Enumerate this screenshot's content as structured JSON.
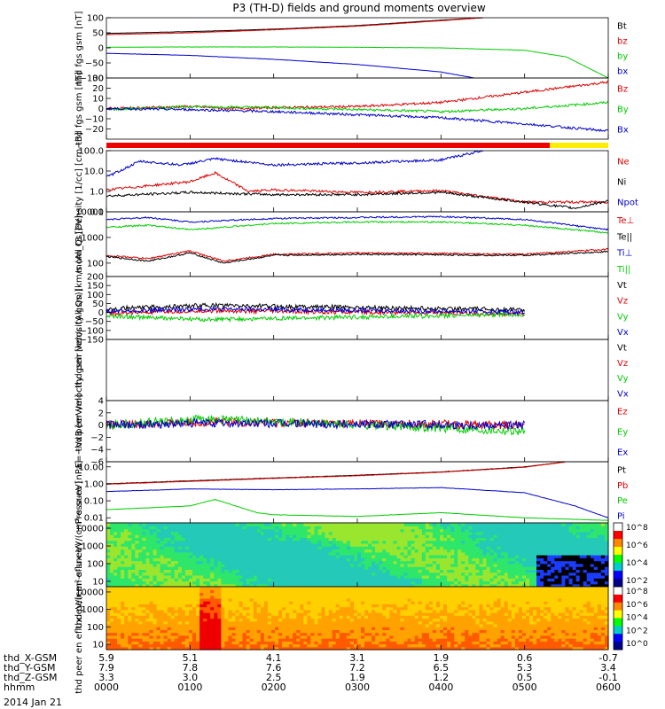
{
  "title": "P3 (TH-D) fields and ground moments overview",
  "date_label": "2014 Jan 21",
  "colorbar_labels": [
    "10^8",
    "10^6",
    "10^4",
    "10^2"
  ],
  "colorbar2_labels": [
    "10^8",
    "10^6",
    "10^4",
    "10^2",
    "10^0"
  ],
  "chart_data": {
    "type": "line",
    "title": "P3 (TH-D) fields and ground moments overview",
    "x_time_range": [
      "0000",
      "0600"
    ],
    "footer": {
      "rows": [
        {
          "label": "thd_X-GSM",
          "values": [
            "5.9",
            "5.1",
            "4.1",
            "3.1",
            "1.9",
            "0.6",
            "-0.7"
          ]
        },
        {
          "label": "thd_Y-GSM",
          "values": [
            "7.9",
            "7.8",
            "7.6",
            "7.2",
            "6.5",
            "5.3",
            "3.4"
          ]
        },
        {
          "label": "thd_Z-GSM",
          "values": [
            "3.3",
            "3.0",
            "2.5",
            "1.9",
            "1.2",
            "0.5",
            "-0.1"
          ]
        },
        {
          "label": "hhmm",
          "values": [
            "0000",
            "0100",
            "0200",
            "0300",
            "0400",
            "0500",
            "0600"
          ]
        }
      ]
    },
    "panels": [
      {
        "id": "fgs_gsm",
        "ylabel": "thd fgs gsm [nT]",
        "ylim": [
          -100,
          100
        ],
        "scale": "linear",
        "ticks": [
          {
            "v": 100,
            "l": "100"
          },
          {
            "v": 50,
            "l": "50"
          },
          {
            "v": 0,
            "l": "0"
          },
          {
            "v": -50,
            "l": "−50"
          },
          {
            "v": -100,
            "l": "−100"
          }
        ],
        "series": [
          {
            "name": "Bt",
            "color": "#000000",
            "x": [
              0,
              1,
              2,
              3,
              4,
              4.5
            ],
            "y": [
              48,
              54,
              62,
              74,
              92,
              100
            ]
          },
          {
            "name": "bz",
            "color": "#dd0000",
            "x": [
              0,
              1,
              2,
              3,
              4,
              4.5
            ],
            "y": [
              44,
              50,
              60,
              72,
              90,
              100
            ]
          },
          {
            "name": "by",
            "color": "#00cc00",
            "x": [
              0,
              1,
              2,
              3,
              4,
              5,
              5.5,
              6
            ],
            "y": [
              2,
              3,
              3,
              2,
              0,
              -8,
              -30,
              -100
            ]
          },
          {
            "name": "bx",
            "color": "#0000cc",
            "x": [
              0,
              1,
              2,
              3,
              4,
              4.4
            ],
            "y": [
              -18,
              -25,
              -38,
              -55,
              -80,
              -100
            ]
          }
        ]
      },
      {
        "id": "fgs_gsm_detrended",
        "ylabel": "thd fgs gsm [nT]",
        "ylim": [
          -30,
          30
        ],
        "scale": "linear",
        "ticks": [
          {
            "v": 30,
            "l": "30"
          },
          {
            "v": 20,
            "l": "20"
          },
          {
            "v": 10,
            "l": "10"
          },
          {
            "v": 0,
            "l": "0"
          },
          {
            "v": -10,
            "l": "−10"
          },
          {
            "v": -20,
            "l": "−20"
          }
        ],
        "series": [
          {
            "name": "Bz",
            "color": "#dd0000",
            "x": [
              0,
              1,
              1.5,
              2,
              3,
              4,
              5,
              6
            ],
            "y": [
              0,
              2,
              0,
              1,
              2,
              6,
              16,
              26
            ]
          },
          {
            "name": "By",
            "color": "#00cc00",
            "x": [
              0,
              1,
              2,
              3,
              4,
              5,
              6
            ],
            "y": [
              -1,
              2,
              1,
              -1,
              -3,
              0,
              6
            ]
          },
          {
            "name": "Bx",
            "color": "#0000cc",
            "x": [
              0,
              1,
              2,
              3,
              4,
              5,
              6
            ],
            "y": [
              0,
              -1,
              -3,
              -6,
              -9,
              -15,
              -22
            ]
          }
        ]
      },
      {
        "id": "density",
        "ylabel": "Density [1/cc] [cm−3]",
        "ylim": [
          0.1,
          100
        ],
        "scale": "log",
        "ticks": [
          {
            "v": 100,
            "l": "100.0"
          },
          {
            "v": 10,
            "l": "10.0"
          },
          {
            "v": 1,
            "l": "1.0"
          },
          {
            "v": 0.1,
            "l": "0.1"
          }
        ],
        "series": [
          {
            "name": "Ne",
            "color": "#dd0000",
            "x": [
              0,
              1,
              1.3,
              1.7,
              2,
              3,
              4,
              5,
              6
            ],
            "y": [
              1.2,
              3,
              8,
              1.0,
              1.2,
              0.9,
              1.1,
              0.3,
              0.3
            ]
          },
          {
            "name": "Ni",
            "color": "#000000",
            "x": [
              0,
              1,
              2,
              3,
              4,
              5,
              5.6,
              6
            ],
            "y": [
              0.6,
              0.9,
              0.7,
              0.7,
              0.9,
              0.3,
              0.15,
              0.35
            ]
          },
          {
            "name": "Npot",
            "color": "#0000cc",
            "x": [
              0,
              0.4,
              0.9,
              1.3,
              1.6,
              2,
              3,
              4,
              4.5
            ],
            "y": [
              5,
              30,
              20,
              40,
              30,
              20,
              25,
              35,
              100
            ]
          }
        ]
      },
      {
        "id": "temperature",
        "ylabel": "mom_t3 [eV]",
        "ylim": [
          30,
          10000
        ],
        "scale": "log",
        "ticks": [
          {
            "v": 10000,
            "l": "10000"
          },
          {
            "v": 1000,
            "l": "1000"
          },
          {
            "v": 100,
            "l": "100"
          }
        ],
        "series": [
          {
            "name": "Te⊥",
            "color": "#dd0000",
            "x": [
              0,
              0.5,
              1,
              1.4,
              2,
              3,
              4,
              5,
              6
            ],
            "y": [
              200,
              150,
              300,
              120,
              220,
              250,
              240,
              220,
              350
            ]
          },
          {
            "name": "Te||",
            "color": "#000000",
            "x": [
              0,
              0.5,
              1,
              1.4,
              2,
              3,
              4,
              5,
              6
            ],
            "y": [
              180,
              120,
              250,
              100,
              200,
              220,
              210,
              200,
              280
            ]
          },
          {
            "name": "Ti⊥",
            "color": "#0000cc",
            "x": [
              0,
              0.5,
              1,
              2,
              3,
              4,
              5,
              6
            ],
            "y": [
              5000,
              6000,
              4000,
              5500,
              6000,
              6500,
              5000,
              2000
            ]
          },
          {
            "name": "Ti||",
            "color": "#00cc00",
            "x": [
              0,
              0.5,
              1,
              2,
              3,
              4,
              5,
              6
            ],
            "y": [
              2500,
              3000,
              2000,
              3500,
              4000,
              4000,
              3000,
              1500
            ]
          }
        ]
      },
      {
        "id": "peir_velocity",
        "ylabel": "thd peir velocity gsm [km/s (All Qs)]",
        "ylim": [
          -150,
          200
        ],
        "scale": "linear",
        "ticks": [
          {
            "v": 200,
            "l": "200"
          },
          {
            "v": 150,
            "l": "150"
          },
          {
            "v": 100,
            "l": "100"
          },
          {
            "v": 50,
            "l": "50"
          },
          {
            "v": 0,
            "l": "0"
          },
          {
            "v": -50,
            "l": "−50"
          },
          {
            "v": -100,
            "l": "−100"
          },
          {
            "v": -150,
            "l": "−150"
          }
        ],
        "series": [
          {
            "name": "Vt",
            "color": "#000000",
            "x": [
              0,
              1.2,
              5
            ],
            "y": [
              20,
              40,
              15
            ]
          },
          {
            "name": "Vz",
            "color": "#dd0000",
            "x": [
              0,
              1.2,
              5
            ],
            "y": [
              -5,
              10,
              -8
            ]
          },
          {
            "name": "Vy",
            "color": "#00cc00",
            "x": [
              0,
              1.2,
              5
            ],
            "y": [
              -20,
              -40,
              -10
            ]
          },
          {
            "name": "Vx",
            "color": "#0000cc",
            "x": [
              0,
              1.2,
              5
            ],
            "y": [
              5,
              20,
              3
            ]
          }
        ]
      },
      {
        "id": "peer_velocity",
        "ylabel": "thd peer velocity gsm [km/s (All Qs)]",
        "ylim": [
          -150,
          200
        ],
        "scale": "linear",
        "ticks": [],
        "series": [
          {
            "name": "Vt",
            "color": "#000000",
            "x": [],
            "y": []
          },
          {
            "name": "Vz",
            "color": "#dd0000",
            "x": [],
            "y": []
          },
          {
            "name": "Vy",
            "color": "#00cc00",
            "x": [],
            "y": []
          },
          {
            "name": "Vx",
            "color": "#0000cc",
            "x": [],
            "y": []
          }
        ]
      },
      {
        "id": "efield",
        "ylabel": "E=−VxB [mV/m]",
        "ylim": [
          -6,
          4
        ],
        "scale": "linear",
        "ticks": [
          {
            "v": 4,
            "l": "4"
          },
          {
            "v": 2,
            "l": "2"
          },
          {
            "v": 0,
            "l": "0"
          },
          {
            "v": -2,
            "l": "−2"
          },
          {
            "v": -4,
            "l": "−4"
          },
          {
            "v": -6,
            "l": "−6"
          }
        ],
        "series": [
          {
            "name": "Ez",
            "color": "#dd0000",
            "x": [
              0,
              1.2,
              5
            ],
            "y": [
              0,
              0.5,
              0
            ]
          },
          {
            "name": "Ey",
            "color": "#00cc00",
            "x": [
              0,
              1.2,
              5
            ],
            "y": [
              0,
              1,
              -1
            ]
          },
          {
            "name": "Ex",
            "color": "#0000cc",
            "x": [
              0,
              1.2,
              5
            ],
            "y": [
              0,
              0.3,
              0
            ]
          }
        ]
      },
      {
        "id": "pressure",
        "ylabel": "Pressure [nPa]",
        "ylim": [
          0.005,
          20
        ],
        "scale": "log",
        "ticks": [
          {
            "v": 10,
            "l": "10.00"
          },
          {
            "v": 1,
            "l": "1.00"
          },
          {
            "v": 0.1,
            "l": "0.10"
          },
          {
            "v": 0.01,
            "l": "0.01"
          }
        ],
        "series": [
          {
            "name": "Pt",
            "color": "#000000",
            "x": [
              0,
              1,
              2,
              3,
              4,
              5,
              5.5
            ],
            "y": [
              1.0,
              1.5,
              2.2,
              3.2,
              5,
              10,
              20
            ]
          },
          {
            "name": "Pb",
            "color": "#dd0000",
            "x": [
              0,
              1,
              2,
              3,
              4,
              5,
              5.5
            ],
            "y": [
              0.95,
              1.4,
              2.1,
              3.0,
              4.8,
              9.5,
              20
            ]
          },
          {
            "name": "Pe",
            "color": "#00cc00",
            "x": [
              0,
              1,
              1.3,
              1.8,
              2,
              3,
              4,
              5,
              6
            ],
            "y": [
              0.03,
              0.05,
              0.12,
              0.02,
              0.015,
              0.012,
              0.02,
              0.01,
              0.007
            ]
          },
          {
            "name": "Pi",
            "color": "#0000cc",
            "x": [
              0,
              1,
              2,
              3,
              4,
              5,
              5.6,
              6
            ],
            "y": [
              0.35,
              0.5,
              0.45,
              0.5,
              0.6,
              0.3,
              0.05,
              0.01
            ]
          }
        ]
      },
      {
        "id": "peir_spectrogram",
        "type": "heatmap",
        "ylabel": "thd peir en eflux eV/(cm²-s-sr-eV)",
        "ylim": [
          5,
          20000
        ],
        "scale": "log",
        "ticks": [
          {
            "v": 10000,
            "l": "10000"
          },
          {
            "v": 1000,
            "l": "1000"
          },
          {
            "v": 100,
            "l": "100"
          },
          {
            "v": 10,
            "l": "10"
          }
        ],
        "colorbar": [
          "10^8",
          "10^6",
          "10^4",
          "10^2"
        ]
      },
      {
        "id": "peer_spectrogram",
        "type": "heatmap",
        "ylabel": "thd peer en eflux eV/(cm²-s-sr-eV)",
        "ylim": [
          5,
          20000
        ],
        "scale": "log",
        "ticks": [
          {
            "v": 10000,
            "l": "10000"
          },
          {
            "v": 1000,
            "l": "1000"
          },
          {
            "v": 100,
            "l": "100"
          },
          {
            "v": 10,
            "l": "10"
          }
        ],
        "colorbar": [
          "10^8",
          "10^6",
          "10^4",
          "10^2",
          "10^0"
        ]
      }
    ]
  }
}
